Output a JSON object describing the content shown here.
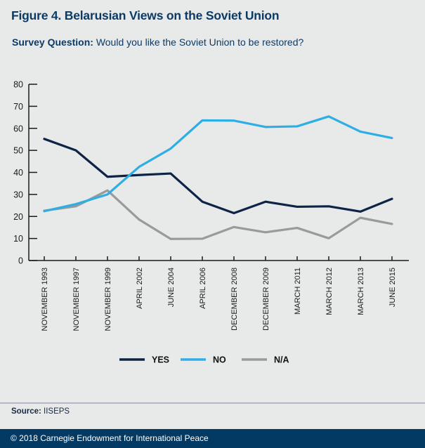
{
  "header": {
    "title": "Figure 4. Belarusian Views on the Soviet Union",
    "subtitle_label": "Survey Question:",
    "subtitle_text": "Would you like the Soviet Union to be restored?"
  },
  "chart_data": {
    "type": "line",
    "title": "Figure 4. Belarusian Views on the Soviet Union",
    "xlabel": "",
    "ylabel": "",
    "ylim": [
      0,
      80
    ],
    "yticks": [
      0,
      10,
      20,
      30,
      40,
      50,
      60,
      70,
      80
    ],
    "grid": false,
    "legend_position": "bottom",
    "categories": [
      "NOVEMBER 1993",
      "NOVEMBER 1997",
      "NOVEMBER 1999",
      "APRIL 2002",
      "JUNE 2004",
      "APRIL 2006",
      "DECEMBER 2008",
      "DECEMBER 2009",
      "MARCH 2011",
      "MARCH 2012",
      "MARCH 2013",
      "JUNE 2015"
    ],
    "series": [
      {
        "name": "YES",
        "color": "#0e2446",
        "values": [
          55.2,
          50.0,
          38.0,
          38.8,
          39.5,
          26.7,
          21.5,
          26.7,
          24.4,
          24.6,
          22.2,
          28.0
        ]
      },
      {
        "name": "NO",
        "color": "#2eaee4",
        "values": [
          22.4,
          25.6,
          30.0,
          42.5,
          50.8,
          63.6,
          63.5,
          60.6,
          60.9,
          65.4,
          58.5,
          55.6
        ]
      },
      {
        "name": "N/A",
        "color": "#9a9a9a",
        "values": [
          22.6,
          24.6,
          31.8,
          18.6,
          9.8,
          9.9,
          15.2,
          12.8,
          14.8,
          10.1,
          19.4,
          16.6
        ]
      }
    ]
  },
  "source": {
    "label": "Source:",
    "text": "IISEPS"
  },
  "footer": {
    "text": "© 2018 Carnegie Endowment for International Peace"
  }
}
